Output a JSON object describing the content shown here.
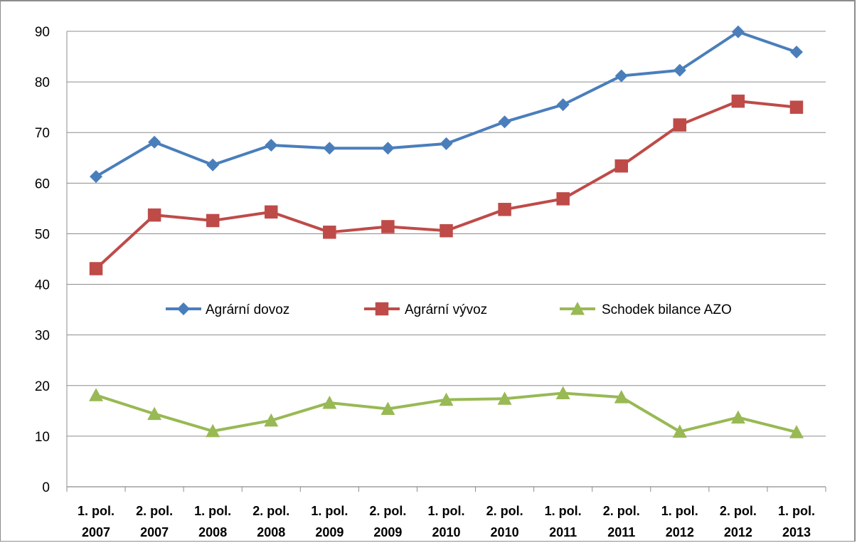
{
  "chart_data": {
    "type": "line",
    "title": "",
    "xlabel": "",
    "ylabel": "",
    "ylim": [
      0,
      90
    ],
    "yticks": [
      "0",
      "10",
      "20",
      "30",
      "40",
      "50",
      "60",
      "70",
      "80",
      "90"
    ],
    "grid": true,
    "legend_position": "center",
    "categories": [
      [
        "1. pol.",
        "2007"
      ],
      [
        "2. pol.",
        "2007"
      ],
      [
        "1. pol.",
        "2008"
      ],
      [
        "2. pol.",
        "2008"
      ],
      [
        "1. pol.",
        "2009"
      ],
      [
        "2. pol.",
        "2009"
      ],
      [
        "1. pol.",
        "2010"
      ],
      [
        "2. pol.",
        "2010"
      ],
      [
        "1. pol.",
        "2011"
      ],
      [
        "2. pol.",
        "2011"
      ],
      [
        "1. pol.",
        "2012"
      ],
      [
        "2. pol.",
        "2012"
      ],
      [
        "1. pol.",
        "2013"
      ]
    ],
    "series": [
      {
        "name": "Agrární dovoz",
        "color": "#4a7ebb",
        "marker": "diamond",
        "values": [
          61.3,
          68.1,
          63.6,
          67.5,
          66.9,
          66.9,
          67.8,
          72.1,
          75.5,
          81.2,
          82.3,
          89.9,
          85.9
        ]
      },
      {
        "name": "Agrární vývoz",
        "color": "#be4b48",
        "marker": "square",
        "values": [
          43.1,
          53.7,
          52.6,
          54.3,
          50.3,
          51.4,
          50.6,
          54.8,
          56.9,
          63.4,
          71.5,
          76.2,
          75.0
        ]
      },
      {
        "name": "Schodek bilance AZO",
        "color": "#98b954",
        "marker": "triangle",
        "values": [
          18.1,
          14.4,
          11.0,
          13.1,
          16.6,
          15.4,
          17.2,
          17.4,
          18.5,
          17.7,
          10.9,
          13.7,
          10.8
        ]
      }
    ]
  }
}
